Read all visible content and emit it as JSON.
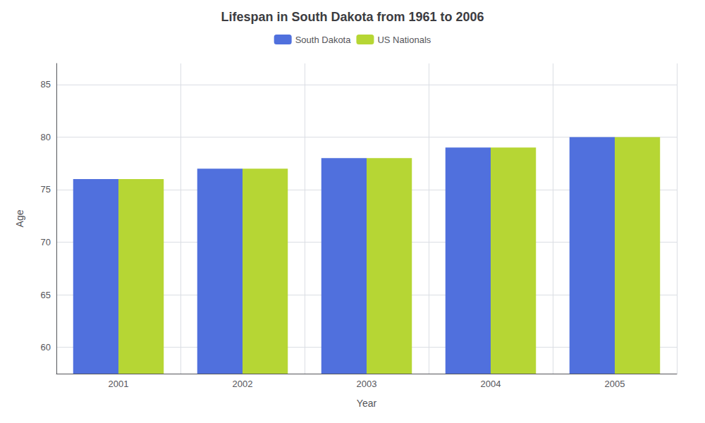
{
  "chart_data": {
    "type": "bar",
    "title": "Lifespan in South Dakota from 1961 to 2006",
    "x_label": "Year",
    "y_label": "Age",
    "categories": [
      "2001",
      "2002",
      "2003",
      "2004",
      "2005"
    ],
    "series": [
      {
        "name": "South Dakota",
        "values": [
          76,
          77,
          78,
          79,
          80
        ]
      },
      {
        "name": "US Nationals",
        "values": [
          76,
          77,
          78,
          79,
          80
        ]
      }
    ],
    "ylim": [
      57.5,
      87
    ],
    "yticks": [
      60,
      65,
      70,
      75,
      80,
      85
    ],
    "grid": true,
    "legend": "top"
  }
}
